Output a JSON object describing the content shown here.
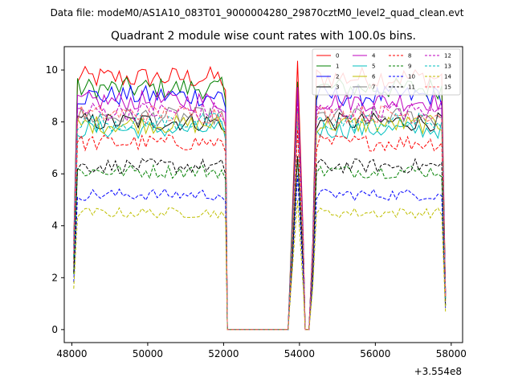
{
  "suptitle": "Data file: modeM0/AS1A10_083T01_9000004280_29870cztM0_level2_quad_clean.evt",
  "chart_data": {
    "type": "line",
    "title": "Quadrant 2 module wise count rates with 100.0s bins.",
    "xlabel": "",
    "ylabel": "",
    "x_offset_label": "+3.554e8",
    "xlim": [
      47800,
      58300
    ],
    "ylim": [
      -0.5,
      10.9
    ],
    "xticks": [
      48000,
      50000,
      52000,
      54000,
      56000,
      58000
    ],
    "yticks": [
      0,
      2,
      4,
      6,
      8,
      10
    ],
    "grid": false,
    "legend_position": "top-right",
    "segments": [
      {
        "start": 48050,
        "end": 52050
      },
      {
        "start": 53800,
        "end": 54200
      },
      {
        "start": 54250,
        "end": 57850
      }
    ],
    "series": [
      {
        "name": "0",
        "level": 9.7,
        "color": "#ff0000",
        "dash": "solid"
      },
      {
        "name": "1",
        "level": 9.3,
        "color": "#008000",
        "dash": "solid"
      },
      {
        "name": "2",
        "level": 9.0,
        "color": "#0000ff",
        "dash": "solid"
      },
      {
        "name": "3",
        "level": 8.0,
        "color": "#000000",
        "dash": "solid"
      },
      {
        "name": "4",
        "level": 8.8,
        "color": "#bf00bf",
        "dash": "solid"
      },
      {
        "name": "5",
        "level": 7.7,
        "color": "#00bfbf",
        "dash": "solid"
      },
      {
        "name": "6",
        "level": 7.9,
        "color": "#bfbf00",
        "dash": "solid"
      },
      {
        "name": "7",
        "level": 8.2,
        "color": "#808080",
        "dash": "solid"
      },
      {
        "name": "8",
        "level": 7.2,
        "color": "#ff0000",
        "dash": "dashed"
      },
      {
        "name": "9",
        "level": 6.1,
        "color": "#008000",
        "dash": "dashed"
      },
      {
        "name": "10",
        "level": 5.2,
        "color": "#0000ff",
        "dash": "dashed"
      },
      {
        "name": "11",
        "level": 6.3,
        "color": "#000000",
        "dash": "dashed"
      },
      {
        "name": "12",
        "level": 8.4,
        "color": "#bf00bf",
        "dash": "dashed"
      },
      {
        "name": "13",
        "level": 8.0,
        "color": "#00bfbf",
        "dash": "dashed"
      },
      {
        "name": "14",
        "level": 4.5,
        "color": "#bfbf00",
        "dash": "dashed"
      },
      {
        "name": "15",
        "level": 8.3,
        "color": "#ff6666",
        "dash": "dashed"
      }
    ]
  }
}
